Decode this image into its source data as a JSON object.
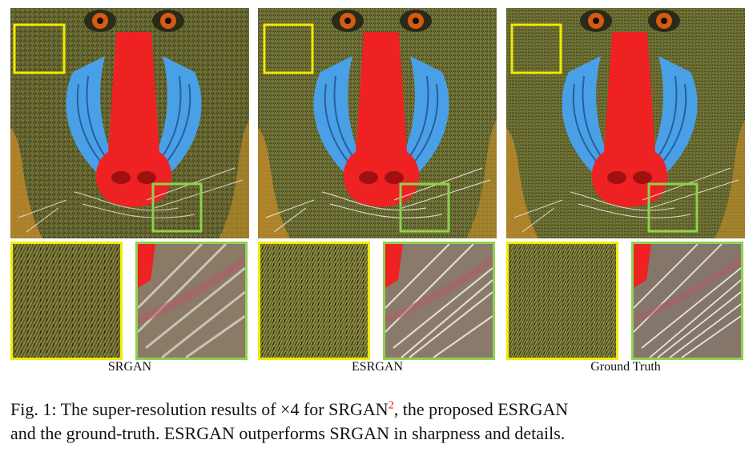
{
  "figure": {
    "panels": [
      {
        "label": "SRGAN"
      },
      {
        "label": "ESRGAN"
      },
      {
        "label": "Ground Truth"
      }
    ],
    "highlight_colors": {
      "fur_box": "#f2ea00",
      "whisker_box": "#8fd14f"
    },
    "caption": {
      "prefix": "Fig. 1: The super-resolution results of ×4 for SRGAN",
      "footnote": "2",
      "line1_suffix": ", the proposed ESRGAN",
      "line2": "and the ground-truth. ESRGAN outperforms SRGAN in sharpness and details."
    }
  }
}
